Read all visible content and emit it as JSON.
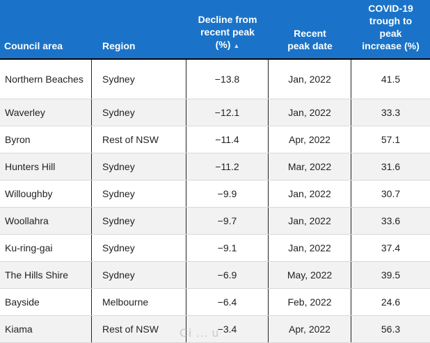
{
  "table": {
    "headers": [
      {
        "label": "Council area",
        "sorted": false
      },
      {
        "label": "Region",
        "sorted": false
      },
      {
        "label": "Decline from recent peak (%)",
        "sorted": true
      },
      {
        "label": "Recent peak date",
        "sorted": false
      },
      {
        "label": "COVID-19 trough to peak increase (%)",
        "sorted": false
      }
    ],
    "sort_indicator": "▲",
    "rows": [
      {
        "council": "Northern Beaches",
        "region": "Sydney",
        "decline": "−13.8",
        "peak_date": "Jan, 2022",
        "increase": "41.5"
      },
      {
        "council": "Waverley",
        "region": "Sydney",
        "decline": "−12.1",
        "peak_date": "Jan, 2022",
        "increase": "33.3"
      },
      {
        "council": "Byron",
        "region": "Rest of NSW",
        "decline": "−11.4",
        "peak_date": "Apr, 2022",
        "increase": "57.1"
      },
      {
        "council": "Hunters Hill",
        "region": "Sydney",
        "decline": "−11.2",
        "peak_date": "Mar, 2022",
        "increase": "31.6"
      },
      {
        "council": "Willoughby",
        "region": "Sydney",
        "decline": "−9.9",
        "peak_date": "Jan, 2022",
        "increase": "30.7"
      },
      {
        "council": "Woollahra",
        "region": "Sydney",
        "decline": "−9.7",
        "peak_date": "Jan, 2022",
        "increase": "33.6"
      },
      {
        "council": "Ku-ring-gai",
        "region": "Sydney",
        "decline": "−9.1",
        "peak_date": "Jan, 2022",
        "increase": "37.4"
      },
      {
        "council": "The Hills Shire",
        "region": "Sydney",
        "decline": "−6.9",
        "peak_date": "May, 2022",
        "increase": "39.5"
      },
      {
        "council": "Bayside",
        "region": "Melbourne",
        "decline": "−6.4",
        "peak_date": "Feb, 2022",
        "increase": "24.6"
      },
      {
        "council": "Kiama",
        "region": "Rest of NSW",
        "decline": "−3.4",
        "peak_date": "Apr, 2022",
        "increase": "56.3"
      }
    ]
  },
  "watermark": "Ci ... u",
  "colors": {
    "header_bg": "#1a73c8",
    "header_text": "#ffffff",
    "row_alt_bg": "#f2f2f2"
  }
}
